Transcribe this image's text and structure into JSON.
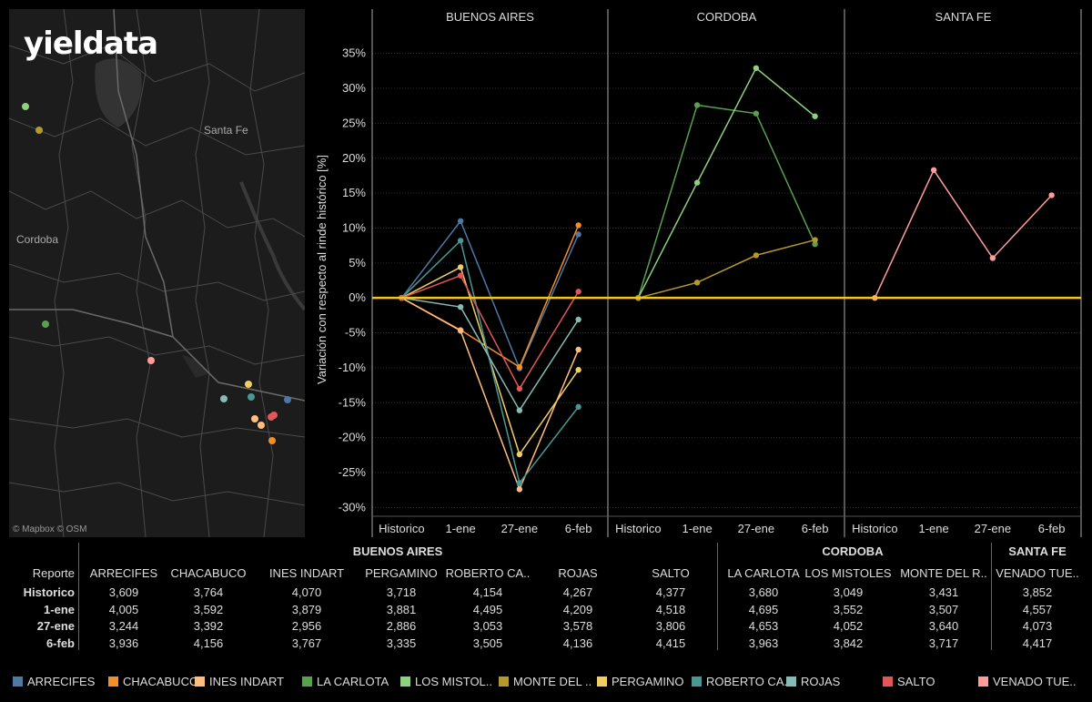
{
  "brand": "yieldata",
  "map": {
    "labels": {
      "santa_fe": "Santa Fe",
      "cordoba": "Cordoba"
    },
    "attribution": "© Mapbox © OSM"
  },
  "colors": {
    "ARRECIFES": "#4e79a7",
    "CHACABUCO": "#f28e2b",
    "INES INDART": "#ffbe7d",
    "LA CARLOTA": "#59a14f",
    "LOS MISTOLES": "#8cd17d",
    "MONTE DEL R": "#b6992d",
    "PERGAMINO": "#f1ce63",
    "ROBERTO CA": "#499894",
    "ROJAS": "#86bcb6",
    "SALTO": "#e15759",
    "VENADO TUE": "#ff9d9a",
    "zero_line": "#f5c518"
  },
  "chart_data": {
    "type": "line",
    "ylabel": "Variación con respecto al rinde histórico [%]",
    "ylim": [
      -31,
      39
    ],
    "yticks": [
      35,
      30,
      25,
      20,
      15,
      10,
      5,
      0,
      -5,
      -10,
      -15,
      -20,
      -25,
      -30
    ],
    "categories": [
      "Historico",
      "1-ene",
      "27-ene",
      "6-feb"
    ],
    "panels": [
      {
        "name": "BUENOS AIRES",
        "series": [
          {
            "name": "ARRECIFES",
            "values": [
              0,
              11.0,
              -10.1,
              9.1
            ]
          },
          {
            "name": "CHACABUCO",
            "values": [
              0,
              -4.6,
              -9.9,
              10.4
            ]
          },
          {
            "name": "INES INDART",
            "values": [
              0,
              -4.7,
              -27.4,
              -7.4
            ]
          },
          {
            "name": "PERGAMINO",
            "values": [
              0,
              4.4,
              -22.4,
              -10.3
            ]
          },
          {
            "name": "ROBERTO CA",
            "values": [
              0,
              8.2,
              -26.5,
              -15.6
            ]
          },
          {
            "name": "ROJAS",
            "values": [
              0,
              -1.3,
              -16.1,
              -3.1
            ]
          },
          {
            "name": "SALTO",
            "values": [
              0,
              3.2,
              -13.0,
              0.9
            ]
          }
        ]
      },
      {
        "name": "CORDOBA",
        "series": [
          {
            "name": "LA CARLOTA",
            "values": [
              0,
              27.6,
              26.4,
              7.7
            ]
          },
          {
            "name": "LOS MISTOLES",
            "values": [
              0,
              16.5,
              32.9,
              26.0
            ]
          },
          {
            "name": "MONTE DEL R",
            "values": [
              0,
              2.2,
              6.1,
              8.3
            ]
          }
        ]
      },
      {
        "name": "SANTA FE",
        "series": [
          {
            "name": "VENADO TUE",
            "values": [
              0,
              18.3,
              5.7,
              14.7
            ]
          }
        ]
      }
    ]
  },
  "table": {
    "row_header": "Reporte",
    "groups": [
      "BUENOS AIRES",
      "CORDOBA",
      "SANTA FE"
    ],
    "columns": [
      "ARRECIFES",
      "CHACABUCO",
      "INES INDART",
      "PERGAMINO",
      "ROBERTO CA..",
      "ROJAS",
      "SALTO",
      "LA CARLOTA",
      "LOS MISTOLES",
      "MONTE DEL R..",
      "VENADO TUE.."
    ],
    "rows": [
      {
        "label": "Historico",
        "values": [
          "3,609",
          "3,764",
          "4,070",
          "3,718",
          "4,154",
          "4,267",
          "4,377",
          "3,680",
          "3,049",
          "3,431",
          "3,852"
        ]
      },
      {
        "label": "1-ene",
        "values": [
          "4,005",
          "3,592",
          "3,879",
          "3,881",
          "4,495",
          "4,209",
          "4,518",
          "4,695",
          "3,552",
          "3,507",
          "4,557"
        ]
      },
      {
        "label": "27-ene",
        "values": [
          "3,244",
          "3,392",
          "2,956",
          "2,886",
          "3,053",
          "3,578",
          "3,806",
          "4,653",
          "4,052",
          "3,640",
          "4,073"
        ]
      },
      {
        "label": "6-feb",
        "values": [
          "3,936",
          "4,156",
          "3,767",
          "3,335",
          "3,505",
          "4,136",
          "4,415",
          "3,963",
          "3,842",
          "3,717",
          "4,417"
        ]
      }
    ]
  },
  "legend": [
    {
      "label": "ARRECIFES",
      "key": "ARRECIFES"
    },
    {
      "label": "CHACABUCO",
      "key": "CHACABUCO"
    },
    {
      "label": "INES INDART",
      "key": "INES INDART"
    },
    {
      "label": "LA CARLOTA",
      "key": "LA CARLOTA"
    },
    {
      "label": "LOS MISTOL..",
      "key": "LOS MISTOLES"
    },
    {
      "label": "MONTE DEL ..",
      "key": "MONTE DEL R"
    },
    {
      "label": "PERGAMINO",
      "key": "PERGAMINO"
    },
    {
      "label": "ROBERTO CA..",
      "key": "ROBERTO CA"
    },
    {
      "label": "ROJAS",
      "key": "ROJAS"
    },
    {
      "label": "SALTO",
      "key": "SALTO"
    },
    {
      "label": "VENADO TUE..",
      "key": "VENADO TUE"
    }
  ],
  "map_points": [
    {
      "key": "LOS MISTOLES"
    },
    {
      "key": "MONTE DEL R"
    },
    {
      "key": "LA CARLOTA"
    },
    {
      "key": "VENADO TUE"
    },
    {
      "key": "ROJAS"
    },
    {
      "key": "PERGAMINO"
    },
    {
      "key": "ROBERTO CA"
    },
    {
      "key": "INES INDART"
    },
    {
      "key": "INES INDART"
    },
    {
      "key": "SALTO"
    },
    {
      "key": "SALTO"
    },
    {
      "key": "ARRECIFES"
    },
    {
      "key": "CHACABUCO"
    }
  ]
}
